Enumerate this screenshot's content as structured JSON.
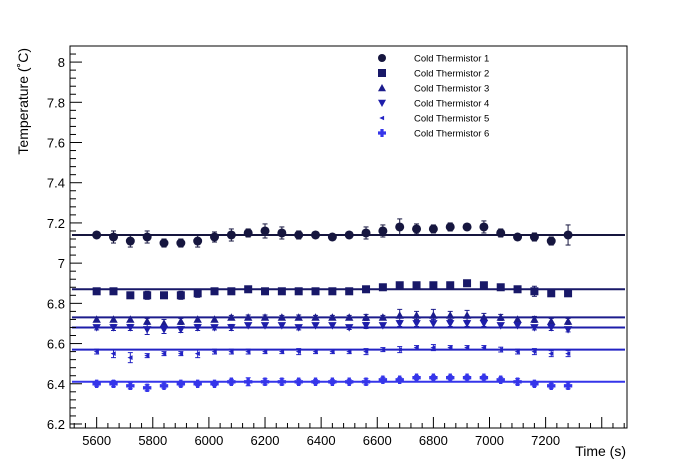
{
  "chart_data": {
    "type": "scatter",
    "title": "",
    "xlabel": "Time (s)",
    "ylabel": "Temperature (˚C)",
    "xlim": [
      5505,
      7490
    ],
    "ylim": [
      6.18,
      8.08
    ],
    "xticks": [
      5600,
      5800,
      6000,
      6200,
      6400,
      6600,
      6800,
      7000,
      7200
    ],
    "yticks": [
      6.2,
      6.4,
      6.6,
      6.8,
      7,
      7.2,
      7.4,
      7.6,
      7.8,
      8
    ],
    "grid": false,
    "legend_position": "top-right",
    "x": [
      5600,
      5660,
      5720,
      5780,
      5840,
      5900,
      5960,
      6020,
      6080,
      6140,
      6200,
      6260,
      6320,
      6380,
      6440,
      6500,
      6560,
      6620,
      6680,
      6740,
      6800,
      6860,
      6920,
      6980,
      7040,
      7100,
      7160,
      7220,
      7280
    ],
    "series": [
      {
        "name": "Cold Thermistor 1",
        "marker": "circle",
        "color": "#16163f",
        "fit": 7.14,
        "values": [
          7.14,
          7.13,
          7.11,
          7.13,
          7.1,
          7.1,
          7.11,
          7.13,
          7.14,
          7.15,
          7.16,
          7.15,
          7.14,
          7.14,
          7.13,
          7.14,
          7.15,
          7.16,
          7.18,
          7.17,
          7.17,
          7.18,
          7.18,
          7.18,
          7.15,
          7.13,
          7.13,
          7.11,
          7.14
        ],
        "errors": [
          0.015,
          0.03,
          0.03,
          0.03,
          0.02,
          0.02,
          0.03,
          0.025,
          0.03,
          0.02,
          0.035,
          0.03,
          0.02,
          0.015,
          0.015,
          0.015,
          0.03,
          0.03,
          0.04,
          0.025,
          0.02,
          0.02,
          0.015,
          0.03,
          0.02,
          0.015,
          0.02,
          0.02,
          0.05
        ]
      },
      {
        "name": "Cold Thermistor 2",
        "marker": "square",
        "color": "#181868",
        "fit": 6.87,
        "values": [
          6.86,
          6.86,
          6.84,
          6.84,
          6.84,
          6.84,
          6.85,
          6.86,
          6.86,
          6.87,
          6.86,
          6.86,
          6.86,
          6.86,
          6.86,
          6.86,
          6.87,
          6.88,
          6.89,
          6.89,
          6.89,
          6.89,
          6.9,
          6.89,
          6.88,
          6.87,
          6.86,
          6.85,
          6.85
        ],
        "errors": [
          0.01,
          0.015,
          0.015,
          0.02,
          0.012,
          0.02,
          0.02,
          0.015,
          0.015,
          0.012,
          0.015,
          0.012,
          0.01,
          0.01,
          0.01,
          0.01,
          0.01,
          0.01,
          0.012,
          0.01,
          0.01,
          0.01,
          0.01,
          0.01,
          0.01,
          0.01,
          0.025,
          0.015,
          0.01
        ]
      },
      {
        "name": "Cold Thermistor 3",
        "marker": "triangle-up",
        "color": "#1c1c8c",
        "fit": 6.73,
        "values": [
          6.72,
          6.72,
          6.72,
          6.71,
          6.7,
          6.71,
          6.72,
          6.72,
          6.73,
          6.73,
          6.73,
          6.73,
          6.73,
          6.73,
          6.73,
          6.73,
          6.73,
          6.73,
          6.74,
          6.74,
          6.74,
          6.74,
          6.74,
          6.73,
          6.73,
          6.72,
          6.72,
          6.71,
          6.71
        ],
        "errors": [
          0.012,
          0.01,
          0.01,
          0.015,
          0.02,
          0.015,
          0.012,
          0.01,
          0.01,
          0.012,
          0.012,
          0.01,
          0.012,
          0.01,
          0.01,
          0.01,
          0.015,
          0.01,
          0.03,
          0.02,
          0.03,
          0.02,
          0.025,
          0.02,
          0.015,
          0.012,
          0.015,
          0.015,
          0.015
        ]
      },
      {
        "name": "Cold Thermistor 4",
        "marker": "triangle-down",
        "color": "#1e1eaa",
        "fit": 6.68,
        "values": [
          6.68,
          6.68,
          6.68,
          6.67,
          6.67,
          6.67,
          6.68,
          6.68,
          6.68,
          6.69,
          6.69,
          6.69,
          6.68,
          6.69,
          6.69,
          6.68,
          6.69,
          6.69,
          6.7,
          6.7,
          6.7,
          6.7,
          6.7,
          6.7,
          6.69,
          6.69,
          6.68,
          6.68,
          6.67
        ],
        "errors": [
          0.012,
          0.015,
          0.015,
          0.025,
          0.02,
          0.015,
          0.015,
          0.012,
          0.015,
          0.012,
          0.012,
          0.012,
          0.012,
          0.01,
          0.01,
          0.01,
          0.015,
          0.01,
          0.015,
          0.015,
          0.02,
          0.015,
          0.015,
          0.015,
          0.01,
          0.012,
          0.012,
          0.015,
          0.012
        ]
      },
      {
        "name": "Cold Thermistor 5",
        "marker": "triangle-left",
        "color": "#2222c4",
        "fit": 6.57,
        "values": [
          6.56,
          6.55,
          6.53,
          6.54,
          6.55,
          6.55,
          6.55,
          6.56,
          6.56,
          6.56,
          6.56,
          6.56,
          6.56,
          6.56,
          6.56,
          6.56,
          6.56,
          6.57,
          6.57,
          6.58,
          6.58,
          6.58,
          6.58,
          6.58,
          6.57,
          6.56,
          6.56,
          6.55,
          6.55
        ],
        "errors": [
          0.012,
          0.02,
          0.025,
          0.01,
          0.01,
          0.01,
          0.02,
          0.012,
          0.012,
          0.012,
          0.01,
          0.01,
          0.015,
          0.01,
          0.01,
          0.01,
          0.015,
          0.01,
          0.015,
          0.01,
          0.015,
          0.01,
          0.01,
          0.01,
          0.012,
          0.012,
          0.015,
          0.015,
          0.015
        ]
      },
      {
        "name": "Cold Thermistor 6",
        "marker": "cross",
        "color": "#3535ea",
        "fit": 6.41,
        "values": [
          6.4,
          6.4,
          6.39,
          6.38,
          6.39,
          6.4,
          6.4,
          6.4,
          6.41,
          6.41,
          6.41,
          6.41,
          6.41,
          6.41,
          6.41,
          6.41,
          6.41,
          6.42,
          6.42,
          6.43,
          6.43,
          6.43,
          6.43,
          6.43,
          6.42,
          6.41,
          6.4,
          6.39,
          6.39
        ],
        "errors": [
          0.012,
          0.015,
          0.015,
          0.015,
          0.012,
          0.012,
          0.01,
          0.01,
          0.012,
          0.02,
          0.015,
          0.015,
          0.012,
          0.01,
          0.01,
          0.01,
          0.015,
          0.012,
          0.01,
          0.01,
          0.01,
          0.01,
          0.01,
          0.01,
          0.012,
          0.015,
          0.012,
          0.012,
          0.015
        ]
      }
    ]
  }
}
